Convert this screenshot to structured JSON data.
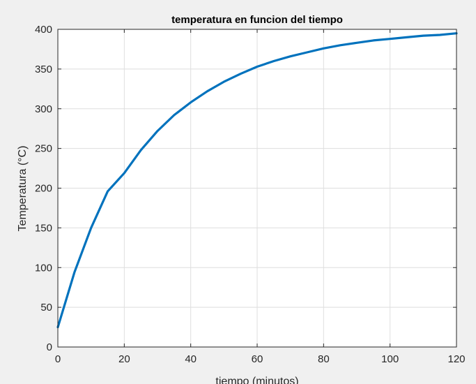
{
  "chart_data": {
    "type": "line",
    "title": "temperatura en funcion del tiempo",
    "xlabel": "tiempo (minutos)",
    "ylabel": "Temperatura (°C)",
    "xlim": [
      0,
      120
    ],
    "ylim": [
      0,
      400
    ],
    "xticks": [
      0,
      20,
      40,
      60,
      80,
      100,
      120
    ],
    "yticks": [
      0,
      50,
      100,
      150,
      200,
      250,
      300,
      350,
      400
    ],
    "grid": true,
    "series": [
      {
        "color": "#0072bd",
        "x": [
          0,
          5,
          10,
          15,
          20,
          25,
          30,
          35,
          40,
          45,
          50,
          55,
          60,
          65,
          70,
          75,
          80,
          85,
          90,
          95,
          100,
          105,
          110,
          115,
          120
        ],
        "y": [
          25,
          94,
          150,
          196,
          219,
          248,
          272,
          292,
          308,
          322,
          334,
          344,
          353,
          360,
          366,
          371,
          376,
          380,
          383,
          386,
          388,
          390,
          392,
          393,
          395
        ]
      }
    ]
  },
  "colors": {
    "figure_background": "#f0f0f0",
    "axes_background": "#ffffff",
    "grid": "#dedede",
    "axis": "#262626",
    "line": "#0072bd"
  }
}
